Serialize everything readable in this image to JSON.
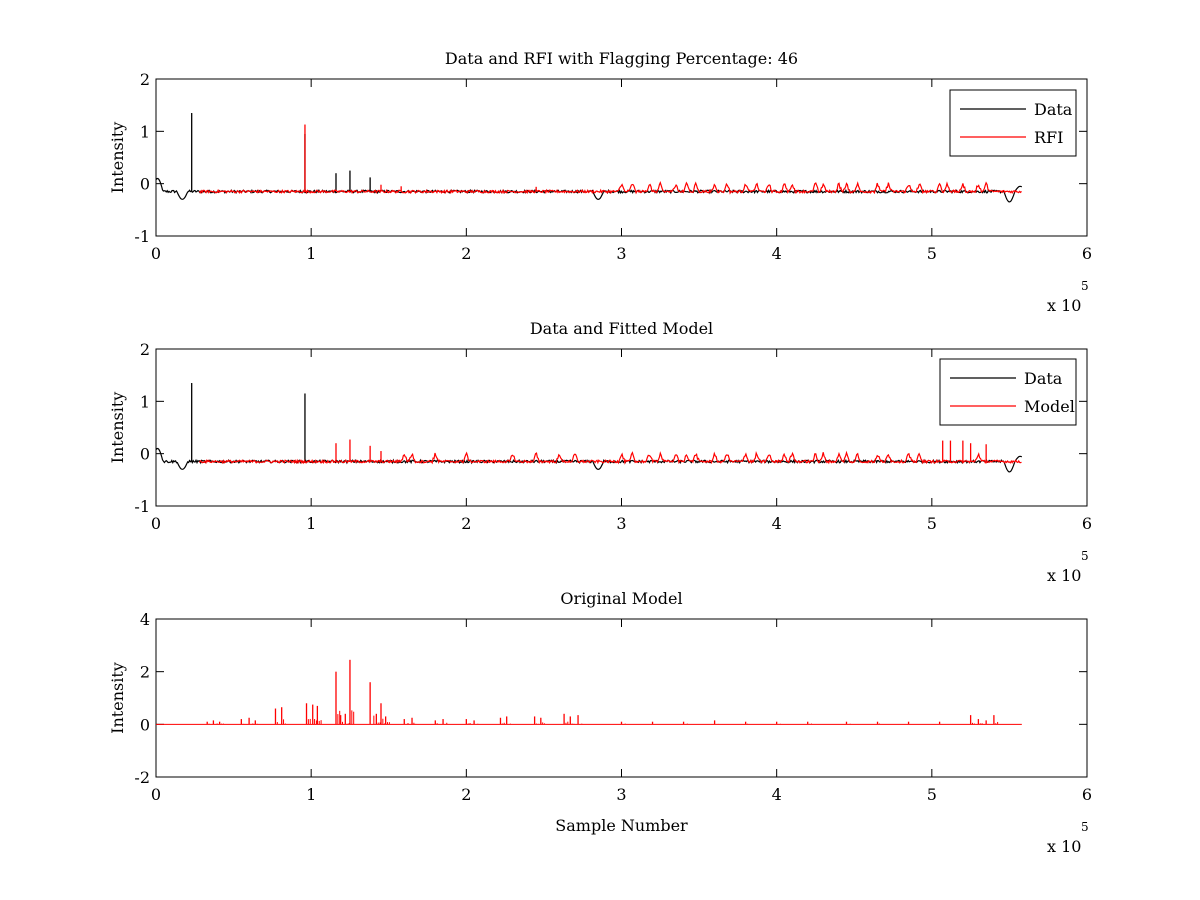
{
  "chart_data": [
    {
      "type": "line",
      "title": "Data and RFI with Flagging Percentage: 46",
      "xlabel": "",
      "ylabel": "Intensity",
      "xlim": [
        0,
        6
      ],
      "ylim": [
        -1,
        2
      ],
      "xticks": [
        "0",
        "1",
        "2",
        "3",
        "4",
        "5",
        "6"
      ],
      "yticks": [
        "-1",
        "0",
        "1",
        "2"
      ],
      "x_multiplier": "x 10",
      "x_exponent": "5",
      "legend_position": "top-right",
      "baseline": -0.15,
      "series": [
        {
          "name": "Data",
          "color": "#000000",
          "spikes": [
            [
              0.23,
              1.35
            ],
            [
              0.96,
              0.95
            ],
            [
              1.16,
              0.2
            ],
            [
              1.25,
              0.25
            ],
            [
              1.38,
              0.12
            ]
          ],
          "dips": [
            [
              0.01,
              0.1
            ],
            [
              0.17,
              -0.3
            ],
            [
              2.85,
              -0.3
            ],
            [
              5.5,
              -0.35
            ],
            [
              5.57,
              -0.05
            ]
          ]
        },
        {
          "name": "RFI",
          "color": "#ff0000",
          "spikes": [
            [
              0.96,
              1.13
            ],
            [
              1.45,
              -0.02
            ],
            [
              1.58,
              -0.05
            ],
            [
              2.45,
              -0.06
            ]
          ],
          "bumps": [
            3.0,
            3.07,
            3.18,
            3.25,
            3.35,
            3.42,
            3.48,
            3.6,
            3.68,
            3.8,
            3.87,
            3.95,
            4.05,
            4.1,
            4.25,
            4.3,
            4.4,
            4.45,
            4.52,
            4.65,
            4.72,
            4.85,
            4.92,
            5.05,
            5.1,
            5.2,
            5.3,
            5.35
          ]
        }
      ]
    },
    {
      "type": "line",
      "title": "Data and Fitted Model",
      "xlabel": "",
      "ylabel": "Intensity",
      "xlim": [
        0,
        6
      ],
      "ylim": [
        -1,
        2
      ],
      "xticks": [
        "0",
        "1",
        "2",
        "3",
        "4",
        "5",
        "6"
      ],
      "yticks": [
        "-1",
        "0",
        "1",
        "2"
      ],
      "x_multiplier": "x 10",
      "x_exponent": "5",
      "legend_position": "top-right",
      "baseline": -0.15,
      "series": [
        {
          "name": "Data",
          "color": "#000000",
          "spikes": [
            [
              0.23,
              1.35
            ],
            [
              0.96,
              1.15
            ]
          ],
          "dips": [
            [
              0.01,
              0.1
            ],
            [
              0.17,
              -0.3
            ],
            [
              2.85,
              -0.3
            ],
            [
              5.5,
              -0.35
            ],
            [
              5.57,
              -0.05
            ]
          ]
        },
        {
          "name": "Model",
          "color": "#ff0000",
          "spikes": [
            [
              1.16,
              0.2
            ],
            [
              1.25,
              0.27
            ],
            [
              1.38,
              0.15
            ],
            [
              1.45,
              0.05
            ],
            [
              5.07,
              0.25
            ],
            [
              5.12,
              0.25
            ],
            [
              5.2,
              0.25
            ],
            [
              5.25,
              0.2
            ],
            [
              5.35,
              0.18
            ]
          ],
          "bumps": [
            1.6,
            1.65,
            1.8,
            2.0,
            2.3,
            2.45,
            2.6,
            2.7,
            3.0,
            3.07,
            3.18,
            3.25,
            3.35,
            3.42,
            3.48,
            3.6,
            3.68,
            3.8,
            3.87,
            3.95,
            4.05,
            4.1,
            4.25,
            4.3,
            4.4,
            4.45,
            4.52,
            4.65,
            4.72,
            4.85,
            4.92,
            5.3
          ]
        }
      ]
    },
    {
      "type": "line",
      "title": "Original Model",
      "xlabel": "Sample Number",
      "ylabel": "Intensity",
      "xlim": [
        0,
        6
      ],
      "ylim": [
        -2,
        4
      ],
      "xticks": [
        "0",
        "1",
        "2",
        "3",
        "4",
        "5",
        "6"
      ],
      "yticks": [
        "-2",
        "0",
        "2",
        "4"
      ],
      "x_multiplier": "x 10",
      "x_exponent": "5",
      "baseline": 0,
      "series": [
        {
          "name": "Original Model",
          "color": "#ff0000",
          "spikes": [
            [
              0.33,
              0.1
            ],
            [
              0.37,
              0.15
            ],
            [
              0.41,
              0.1
            ],
            [
              0.55,
              0.2
            ],
            [
              0.6,
              0.25
            ],
            [
              0.64,
              0.15
            ],
            [
              0.77,
              0.6
            ],
            [
              0.81,
              0.65
            ],
            [
              0.97,
              0.8
            ],
            [
              1.01,
              0.75
            ],
            [
              1.04,
              0.7
            ],
            [
              1.16,
              2.0
            ],
            [
              1.19,
              0.35
            ],
            [
              1.22,
              0.4
            ],
            [
              1.25,
              2.45
            ],
            [
              1.38,
              1.6
            ],
            [
              1.42,
              0.4
            ],
            [
              1.45,
              0.8
            ],
            [
              1.48,
              0.3
            ],
            [
              1.6,
              0.2
            ],
            [
              1.65,
              0.25
            ],
            [
              1.8,
              0.15
            ],
            [
              1.85,
              0.2
            ],
            [
              2.0,
              0.2
            ],
            [
              2.05,
              0.15
            ],
            [
              2.22,
              0.25
            ],
            [
              2.26,
              0.3
            ],
            [
              2.44,
              0.3
            ],
            [
              2.48,
              0.25
            ],
            [
              2.63,
              0.4
            ],
            [
              2.67,
              0.3
            ],
            [
              2.72,
              0.35
            ],
            [
              3.0,
              0.1
            ],
            [
              3.2,
              0.1
            ],
            [
              3.4,
              0.1
            ],
            [
              3.6,
              0.15
            ],
            [
              3.8,
              0.1
            ],
            [
              4.0,
              0.1
            ],
            [
              4.2,
              0.1
            ],
            [
              4.45,
              0.1
            ],
            [
              4.65,
              0.1
            ],
            [
              4.85,
              0.1
            ],
            [
              5.05,
              0.1
            ],
            [
              5.25,
              0.35
            ],
            [
              5.3,
              0.2
            ],
            [
              5.35,
              0.15
            ],
            [
              5.4,
              0.35
            ]
          ]
        }
      ]
    }
  ]
}
